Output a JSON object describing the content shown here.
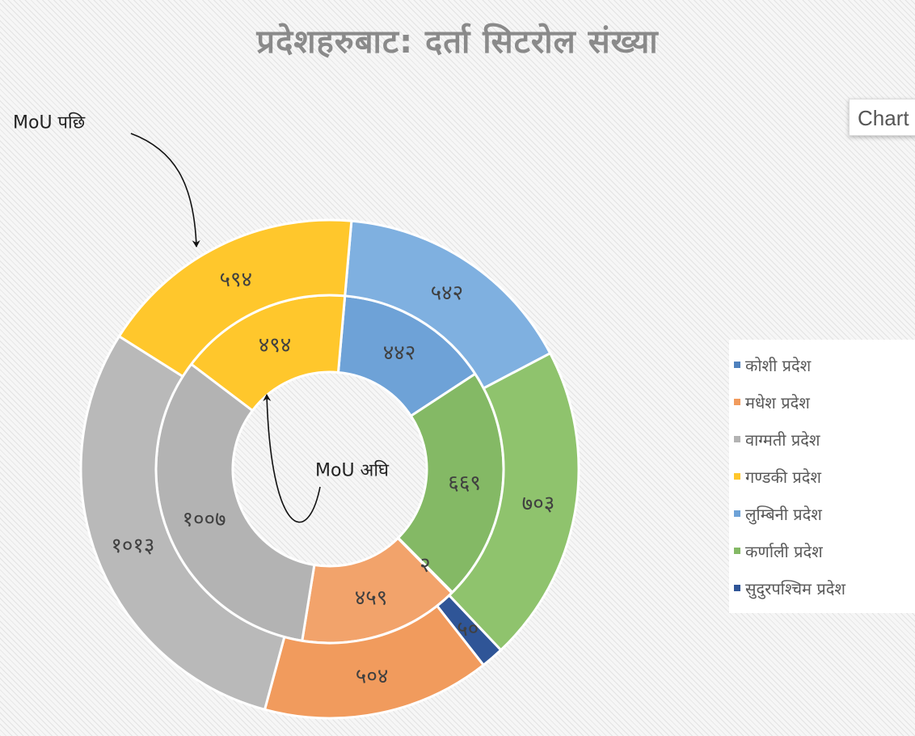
{
  "chart_data": {
    "type": "doughnut",
    "title": "प्रदेशहरुबाट: दर्ता सिटरोल संख्या",
    "categories": [
      "कोशी प्रदेश",
      "मधेश प्रदेश",
      "वाग्मती प्रदेश",
      "गण्डकी प्रदेश",
      "लुम्बिनी प्रदेश",
      "कर्णाली प्रदेश",
      "सुदुरपश्चिम प्रदेश"
    ],
    "series": [
      {
        "name": "MoU अघि",
        "ring": "inner",
        "segments": [
          {
            "label": "४४२",
            "value": 442,
            "color": "#6ea2d7"
          },
          {
            "label": "६६९",
            "value": 669,
            "color": "#84b965"
          },
          {
            "label": "२",
            "value": 2,
            "color": "#2f5597"
          },
          {
            "label": "४५९",
            "value": 459,
            "color": "#f2a36b"
          },
          {
            "label": "१००७",
            "value": 1007,
            "color": "#b3b3b3"
          },
          {
            "label": "४९४",
            "value": 494,
            "color": "#ffc72c"
          }
        ]
      },
      {
        "name": "MoU पछि",
        "ring": "outer",
        "segments": [
          {
            "label": "५४२",
            "value": 542,
            "color": "#7fb0e0"
          },
          {
            "label": "७०३",
            "value": 703,
            "color": "#8fc36d"
          },
          {
            "label": "५०",
            "value": 50,
            "color": "#2f5597"
          },
          {
            "label": "५०४",
            "value": 504,
            "color": "#f19b5d"
          },
          {
            "label": "१०१३",
            "value": 1013,
            "color": "#b9b9b9"
          },
          {
            "label": "५९४",
            "value": 594,
            "color": "#ffc72c"
          }
        ]
      }
    ],
    "legend": {
      "position": "right",
      "items": [
        {
          "label": "कोशी प्रदेश",
          "color": "#4f81bd"
        },
        {
          "label": "मधेश प्रदेश",
          "color": "#f19b5d"
        },
        {
          "label": "वाग्मती प्रदेश",
          "color": "#b3b3b3"
        },
        {
          "label": "गण्डकी प्रदेश",
          "color": "#ffc72c"
        },
        {
          "label": "लुम्बिनी प्रदेश",
          "color": "#6ea2d7"
        },
        {
          "label": "कर्णाली प्रदेश",
          "color": "#84b965"
        },
        {
          "label": "सुदुरपश्चिम प्रदेश",
          "color": "#2f5597"
        }
      ]
    },
    "annotations": {
      "outer": "MoU पछि",
      "inner": "MoU अघि"
    }
  },
  "ui": {
    "tab_label": "Chart"
  }
}
